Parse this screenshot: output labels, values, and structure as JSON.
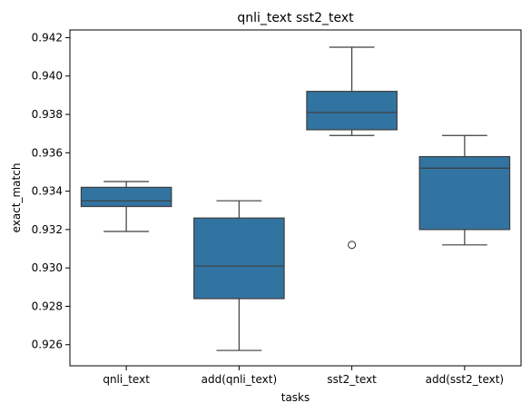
{
  "chart_data": {
    "type": "box",
    "title": "qnli_text sst2_text",
    "xlabel": "tasks",
    "ylabel": "exact_match",
    "ylim": [
      0.9249,
      0.9424
    ],
    "yticks": [
      "0.926",
      "0.928",
      "0.930",
      "0.932",
      "0.934",
      "0.936",
      "0.938",
      "0.940",
      "0.942"
    ],
    "grid": false,
    "box_color": "#3274a1",
    "categories": [
      "qnli_text",
      "add(qnli_text)",
      "sst2_text",
      "add(sst2_text)"
    ],
    "boxes": [
      {
        "whisker_low": 0.9319,
        "q1": 0.9332,
        "median": 0.9335,
        "q3": 0.9342,
        "whisker_high": 0.9345,
        "outliers": []
      },
      {
        "whisker_low": 0.9257,
        "q1": 0.9284,
        "median": 0.9301,
        "q3": 0.9326,
        "whisker_high": 0.9335,
        "outliers": []
      },
      {
        "whisker_low": 0.9369,
        "q1": 0.9372,
        "median": 0.9381,
        "q3": 0.9392,
        "whisker_high": 0.9415,
        "outliers": [
          0.9312
        ]
      },
      {
        "whisker_low": 0.9312,
        "q1": 0.932,
        "median": 0.9352,
        "q3": 0.9358,
        "whisker_high": 0.9369,
        "outliers": []
      }
    ]
  }
}
